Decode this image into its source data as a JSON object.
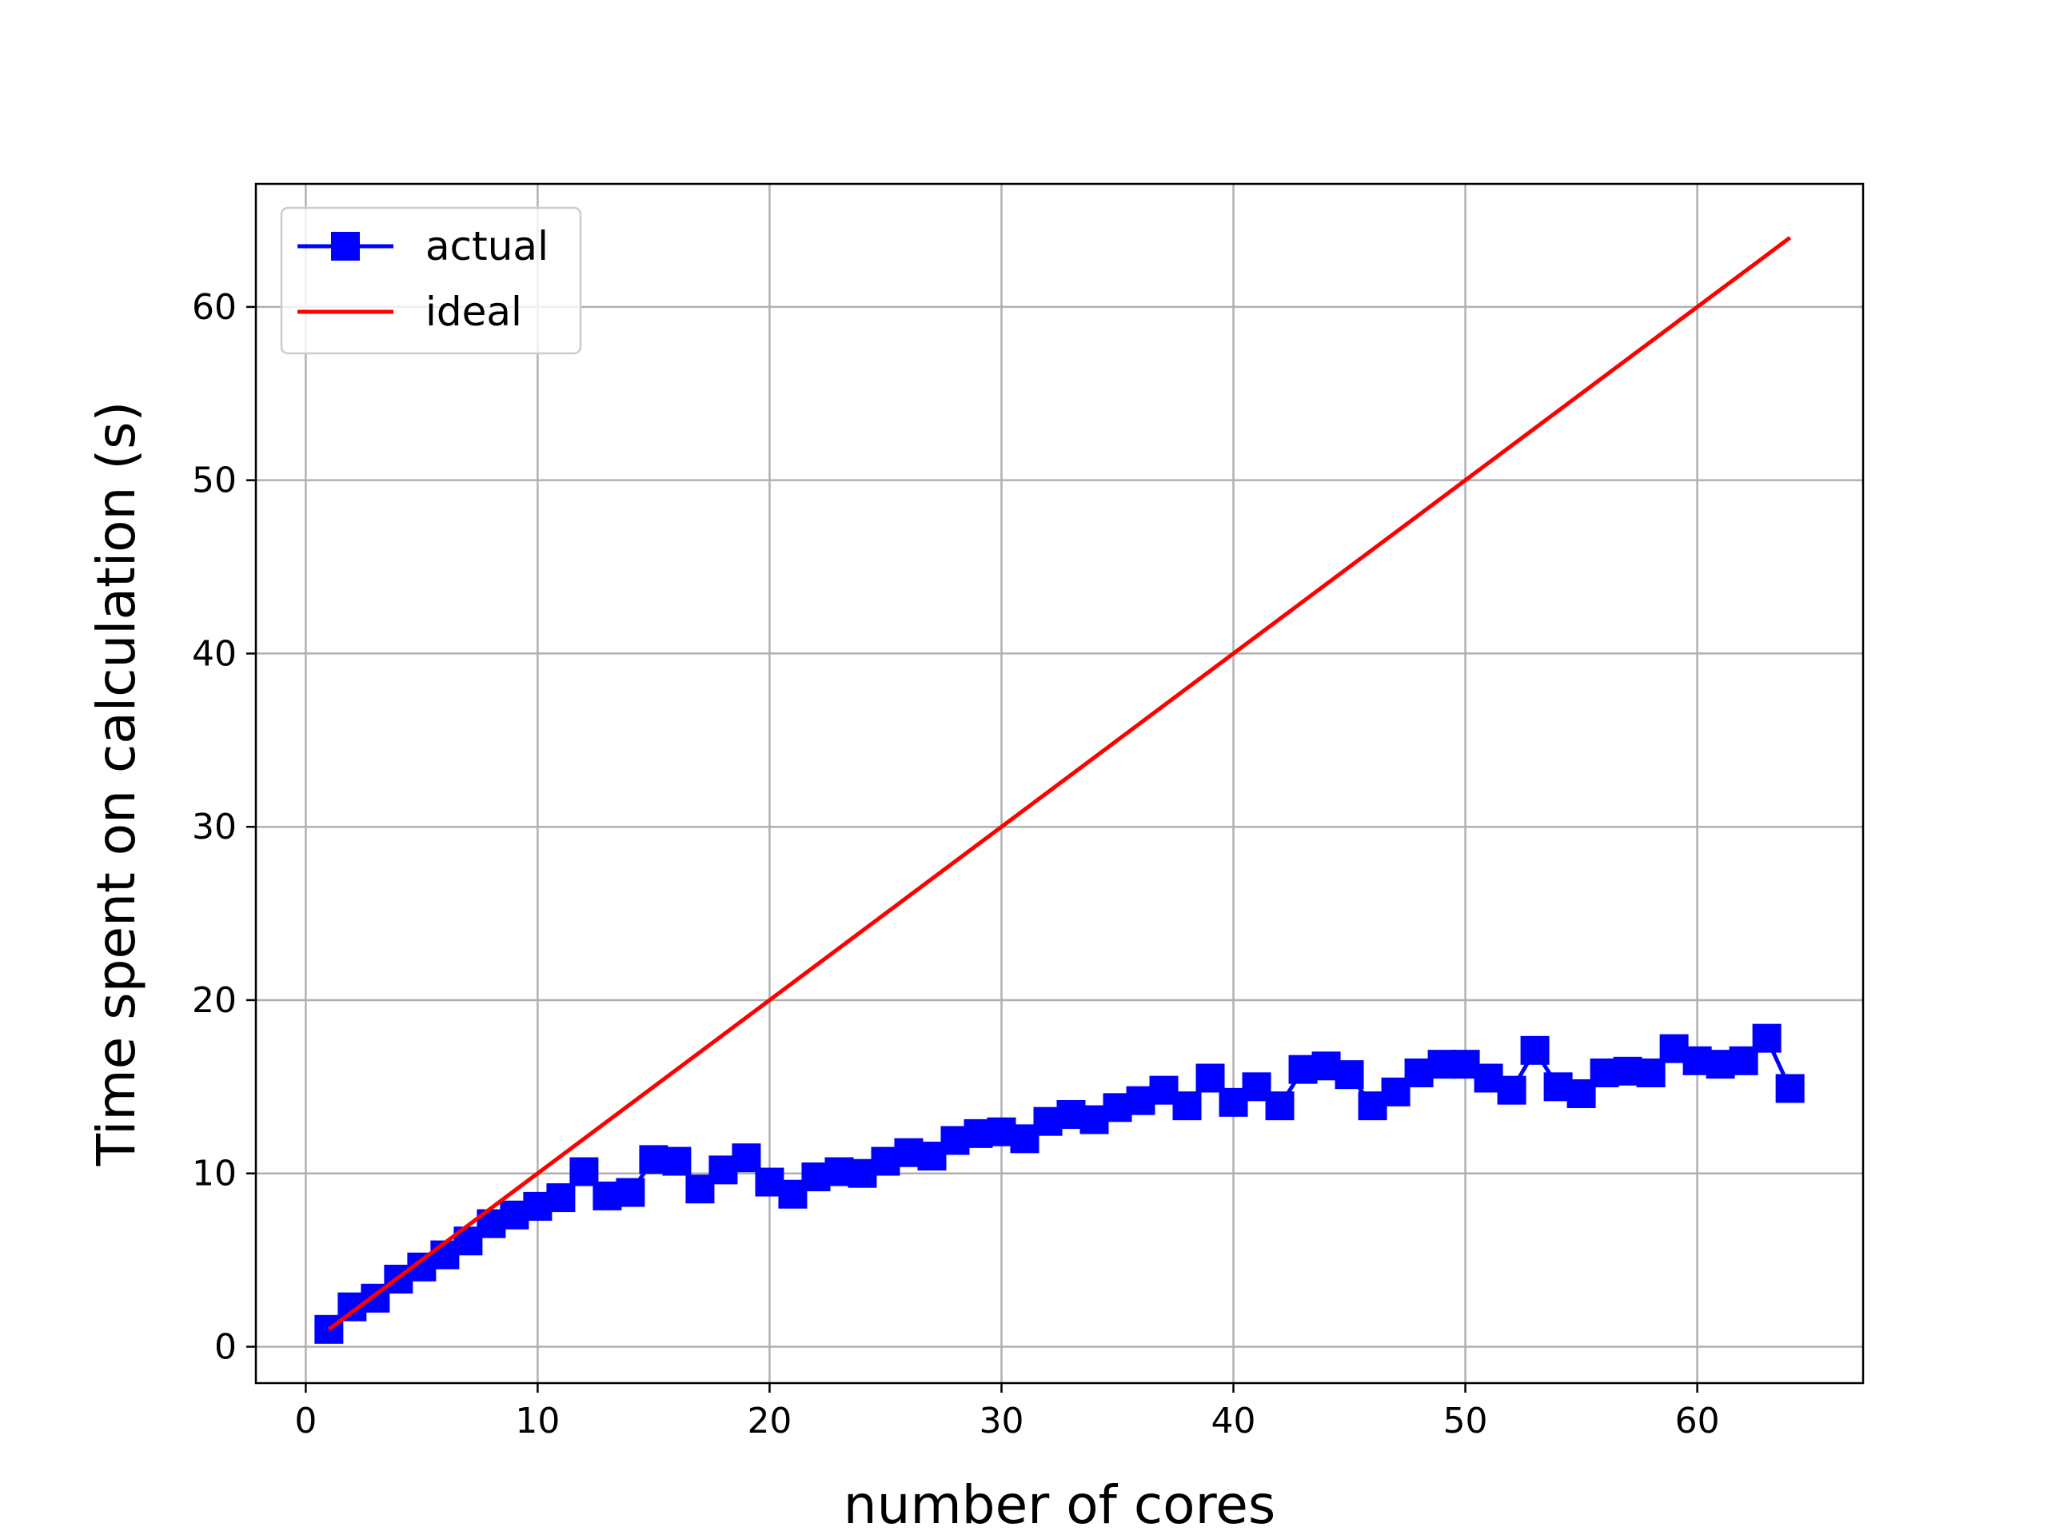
{
  "chart_data": {
    "type": "line",
    "title": "",
    "xlabel": "number of cores",
    "ylabel": "Time spent on calculation (s)",
    "xlim": [
      -2.15,
      67.15
    ],
    "ylim": [
      -2.1,
      67.1
    ],
    "xticks": [
      0,
      10,
      20,
      30,
      40,
      50,
      60
    ],
    "yticks": [
      0,
      10,
      20,
      30,
      40,
      50,
      60
    ],
    "grid": true,
    "legend_position": "top-left",
    "series": [
      {
        "name": "actual",
        "color": "#0000ff",
        "marker": "square",
        "x": [
          1,
          2,
          3,
          4,
          5,
          6,
          7,
          8,
          9,
          10,
          11,
          12,
          13,
          14,
          15,
          16,
          17,
          18,
          19,
          20,
          21,
          22,
          23,
          24,
          25,
          26,
          27,
          28,
          29,
          30,
          31,
          32,
          33,
          34,
          35,
          36,
          37,
          38,
          39,
          40,
          41,
          42,
          43,
          44,
          45,
          46,
          47,
          48,
          49,
          50,
          51,
          52,
          53,
          54,
          55,
          56,
          57,
          58,
          59,
          60,
          61,
          62,
          63,
          64
        ],
        "y": [
          1.0,
          2.3,
          2.8,
          3.9,
          4.6,
          5.3,
          6.1,
          7.1,
          7.6,
          8.1,
          8.6,
          10.1,
          8.7,
          8.9,
          10.8,
          10.7,
          9.1,
          10.2,
          10.9,
          9.5,
          8.8,
          9.8,
          10.1,
          10.0,
          10.7,
          11.2,
          11.0,
          11.9,
          12.3,
          12.4,
          12.0,
          13.0,
          13.4,
          13.1,
          13.8,
          14.2,
          14.8,
          13.9,
          15.5,
          14.1,
          15.0,
          13.9,
          16.0,
          16.2,
          15.7,
          13.9,
          14.7,
          15.8,
          16.3,
          16.3,
          15.5,
          14.8,
          17.1,
          15.0,
          14.6,
          15.8,
          15.9,
          15.8,
          17.2,
          16.5,
          16.3,
          16.5,
          17.8,
          14.9
        ]
      },
      {
        "name": "ideal",
        "color": "#ff0000",
        "marker": "none",
        "x": [
          1,
          64
        ],
        "y": [
          1,
          64
        ]
      }
    ]
  }
}
